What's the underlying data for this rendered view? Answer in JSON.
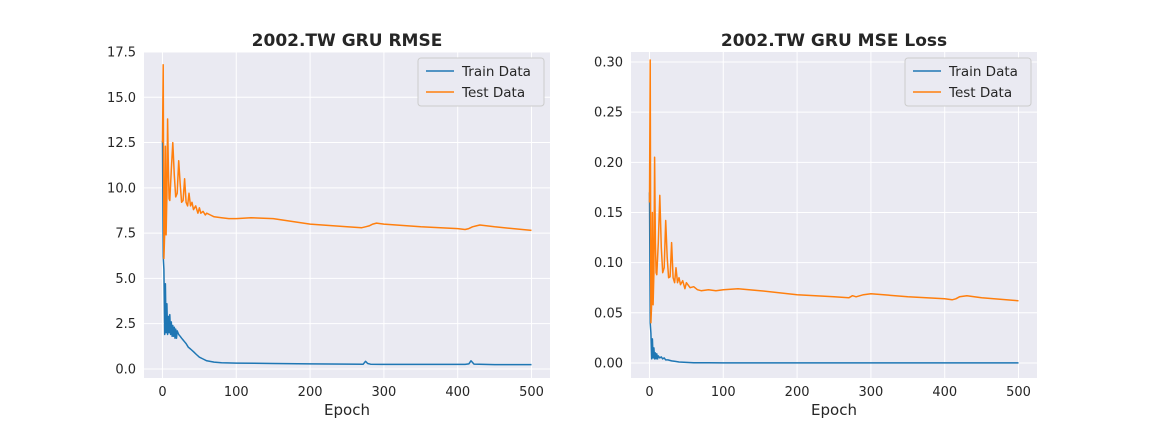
{
  "chart_data": [
    {
      "type": "line",
      "title": "2002.TW  GRU RMSE",
      "xlabel": "Epoch",
      "ylabel": "",
      "xlim": [
        -25,
        525
      ],
      "ylim": [
        -0.5,
        17.5
      ],
      "xticks": [
        0,
        100,
        200,
        300,
        400,
        500
      ],
      "yticks": [
        0.0,
        2.5,
        5.0,
        7.5,
        10.0,
        12.5,
        15.0,
        17.5
      ],
      "ytick_labels": [
        "0.0",
        "2.5",
        "5.0",
        "7.5",
        "10.0",
        "12.5",
        "15.0",
        "17.5"
      ],
      "grid": true,
      "legend": "top-right",
      "series": [
        {
          "name": "Train Data",
          "color": "#1f77b4",
          "x": [
            0,
            1,
            2,
            3,
            4,
            5,
            6,
            7,
            8,
            9,
            10,
            11,
            12,
            13,
            14,
            15,
            16,
            17,
            18,
            19,
            20,
            22,
            24,
            26,
            28,
            30,
            32,
            35,
            38,
            42,
            46,
            50,
            55,
            60,
            70,
            80,
            100,
            150,
            200,
            250,
            272,
            275,
            278,
            282,
            300,
            350,
            410,
            415,
            418,
            422,
            450,
            500
          ],
          "y": [
            12.6,
            6.2,
            5.5,
            1.9,
            4.7,
            2.0,
            3.6,
            1.9,
            2.9,
            2.0,
            3.0,
            1.9,
            2.6,
            1.8,
            2.4,
            1.8,
            2.3,
            1.7,
            2.2,
            1.7,
            2.1,
            1.9,
            1.8,
            1.7,
            1.6,
            1.5,
            1.4,
            1.2,
            1.1,
            0.95,
            0.8,
            0.65,
            0.55,
            0.45,
            0.38,
            0.34,
            0.32,
            0.3,
            0.28,
            0.27,
            0.26,
            0.42,
            0.3,
            0.26,
            0.25,
            0.25,
            0.25,
            0.28,
            0.45,
            0.27,
            0.24,
            0.24
          ]
        },
        {
          "name": "Test Data",
          "color": "#ff7f0e",
          "x": [
            0,
            1,
            2,
            3,
            4,
            5,
            6,
            7,
            8,
            9,
            10,
            12,
            14,
            16,
            18,
            20,
            22,
            24,
            26,
            28,
            30,
            32,
            34,
            36,
            38,
            40,
            42,
            45,
            48,
            50,
            52,
            55,
            58,
            60,
            65,
            70,
            80,
            90,
            100,
            120,
            150,
            200,
            250,
            270,
            275,
            280,
            285,
            290,
            300,
            350,
            400,
            410,
            415,
            420,
            425,
            430,
            450,
            500
          ],
          "y": [
            12.5,
            16.8,
            6.1,
            7.5,
            12.3,
            7.4,
            9.6,
            13.8,
            11.0,
            9.4,
            9.3,
            11.0,
            12.5,
            10.7,
            9.5,
            9.7,
            11.5,
            10.2,
            9.2,
            9.3,
            10.5,
            9.2,
            9.0,
            9.7,
            9.0,
            9.2,
            8.8,
            9.0,
            8.6,
            8.9,
            8.6,
            8.7,
            8.5,
            8.6,
            8.5,
            8.4,
            8.35,
            8.3,
            8.3,
            8.35,
            8.3,
            8.0,
            7.85,
            7.8,
            7.85,
            7.9,
            8.0,
            8.05,
            8.0,
            7.85,
            7.75,
            7.7,
            7.75,
            7.85,
            7.9,
            7.95,
            7.85,
            7.65
          ]
        }
      ]
    },
    {
      "type": "line",
      "title": "2002.TW  GRU MSE Loss",
      "xlabel": "Epoch",
      "ylabel": "",
      "xlim": [
        -25,
        525
      ],
      "ylim": [
        -0.015,
        0.31
      ],
      "xticks": [
        0,
        100,
        200,
        300,
        400,
        500
      ],
      "yticks": [
        0.0,
        0.05,
        0.1,
        0.15,
        0.2,
        0.25,
        0.3
      ],
      "ytick_labels": [
        "0.00",
        "0.05",
        "0.10",
        "0.15",
        "0.20",
        "0.25",
        "0.30"
      ],
      "grid": true,
      "legend": "top-right",
      "series": [
        {
          "name": "Train Data",
          "color": "#1f77b4",
          "x": [
            0,
            1,
            2,
            3,
            4,
            5,
            6,
            7,
            8,
            9,
            10,
            11,
            12,
            14,
            16,
            18,
            20,
            22,
            25,
            30,
            35,
            40,
            50,
            60,
            80,
            100,
            200,
            300,
            400,
            500
          ],
          "y": [
            0.17,
            0.04,
            0.03,
            0.004,
            0.024,
            0.005,
            0.015,
            0.004,
            0.01,
            0.004,
            0.009,
            0.004,
            0.007,
            0.005,
            0.006,
            0.004,
            0.005,
            0.003,
            0.003,
            0.002,
            0.0015,
            0.001,
            0.0006,
            0.0003,
            0.0002,
            0.0001,
            0.0001,
            0.0001,
            0.0001,
            0.0001
          ]
        },
        {
          "name": "Test Data",
          "color": "#ff7f0e",
          "x": [
            0,
            1,
            2,
            3,
            4,
            5,
            6,
            7,
            8,
            9,
            10,
            12,
            14,
            16,
            18,
            20,
            22,
            24,
            26,
            28,
            30,
            32,
            34,
            36,
            38,
            40,
            42,
            45,
            48,
            50,
            55,
            60,
            65,
            70,
            80,
            90,
            100,
            120,
            150,
            200,
            250,
            270,
            275,
            280,
            290,
            300,
            350,
            400,
            410,
            415,
            420,
            430,
            450,
            500
          ],
          "y": [
            0.16,
            0.302,
            0.04,
            0.06,
            0.15,
            0.058,
            0.09,
            0.205,
            0.12,
            0.09,
            0.088,
            0.12,
            0.167,
            0.115,
            0.09,
            0.095,
            0.142,
            0.105,
            0.085,
            0.086,
            0.12,
            0.085,
            0.08,
            0.095,
            0.08,
            0.085,
            0.078,
            0.082,
            0.074,
            0.08,
            0.075,
            0.076,
            0.073,
            0.072,
            0.073,
            0.072,
            0.073,
            0.074,
            0.072,
            0.068,
            0.066,
            0.065,
            0.067,
            0.066,
            0.068,
            0.069,
            0.066,
            0.064,
            0.063,
            0.064,
            0.066,
            0.067,
            0.065,
            0.062
          ]
        }
      ]
    }
  ]
}
